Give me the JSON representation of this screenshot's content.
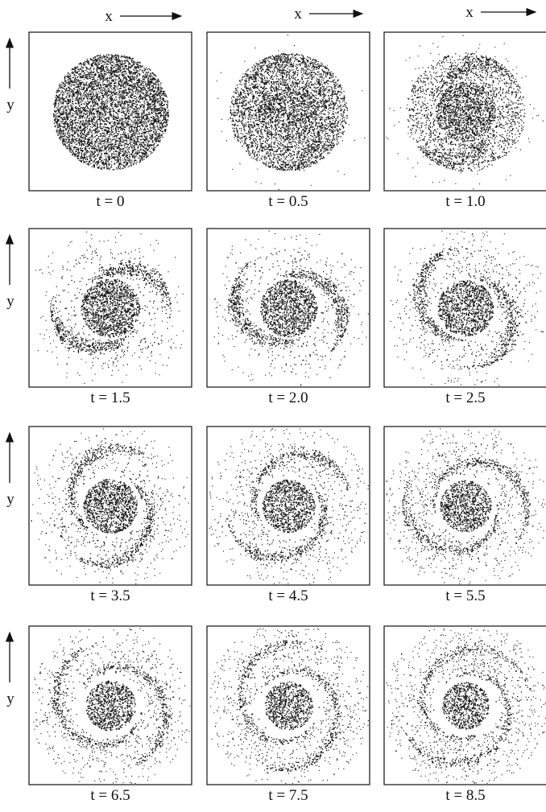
{
  "axes": {
    "x_labels": [
      "x",
      "x",
      "x"
    ],
    "y_labels": [
      "y",
      "y",
      "y",
      "y"
    ]
  },
  "panels": [
    {
      "label": "t = 0"
    },
    {
      "label": "t = 0.5"
    },
    {
      "label": "t = 1.0"
    },
    {
      "label": "t = 1.5"
    },
    {
      "label": "t = 2.0"
    },
    {
      "label": "t = 2.5"
    },
    {
      "label": "t = 3.5"
    },
    {
      "label": "t = 4.5"
    },
    {
      "label": "t = 5.5"
    },
    {
      "label": "t = 6.5"
    },
    {
      "label": "t = 7.5"
    },
    {
      "label": "t = 8.5"
    }
  ]
}
